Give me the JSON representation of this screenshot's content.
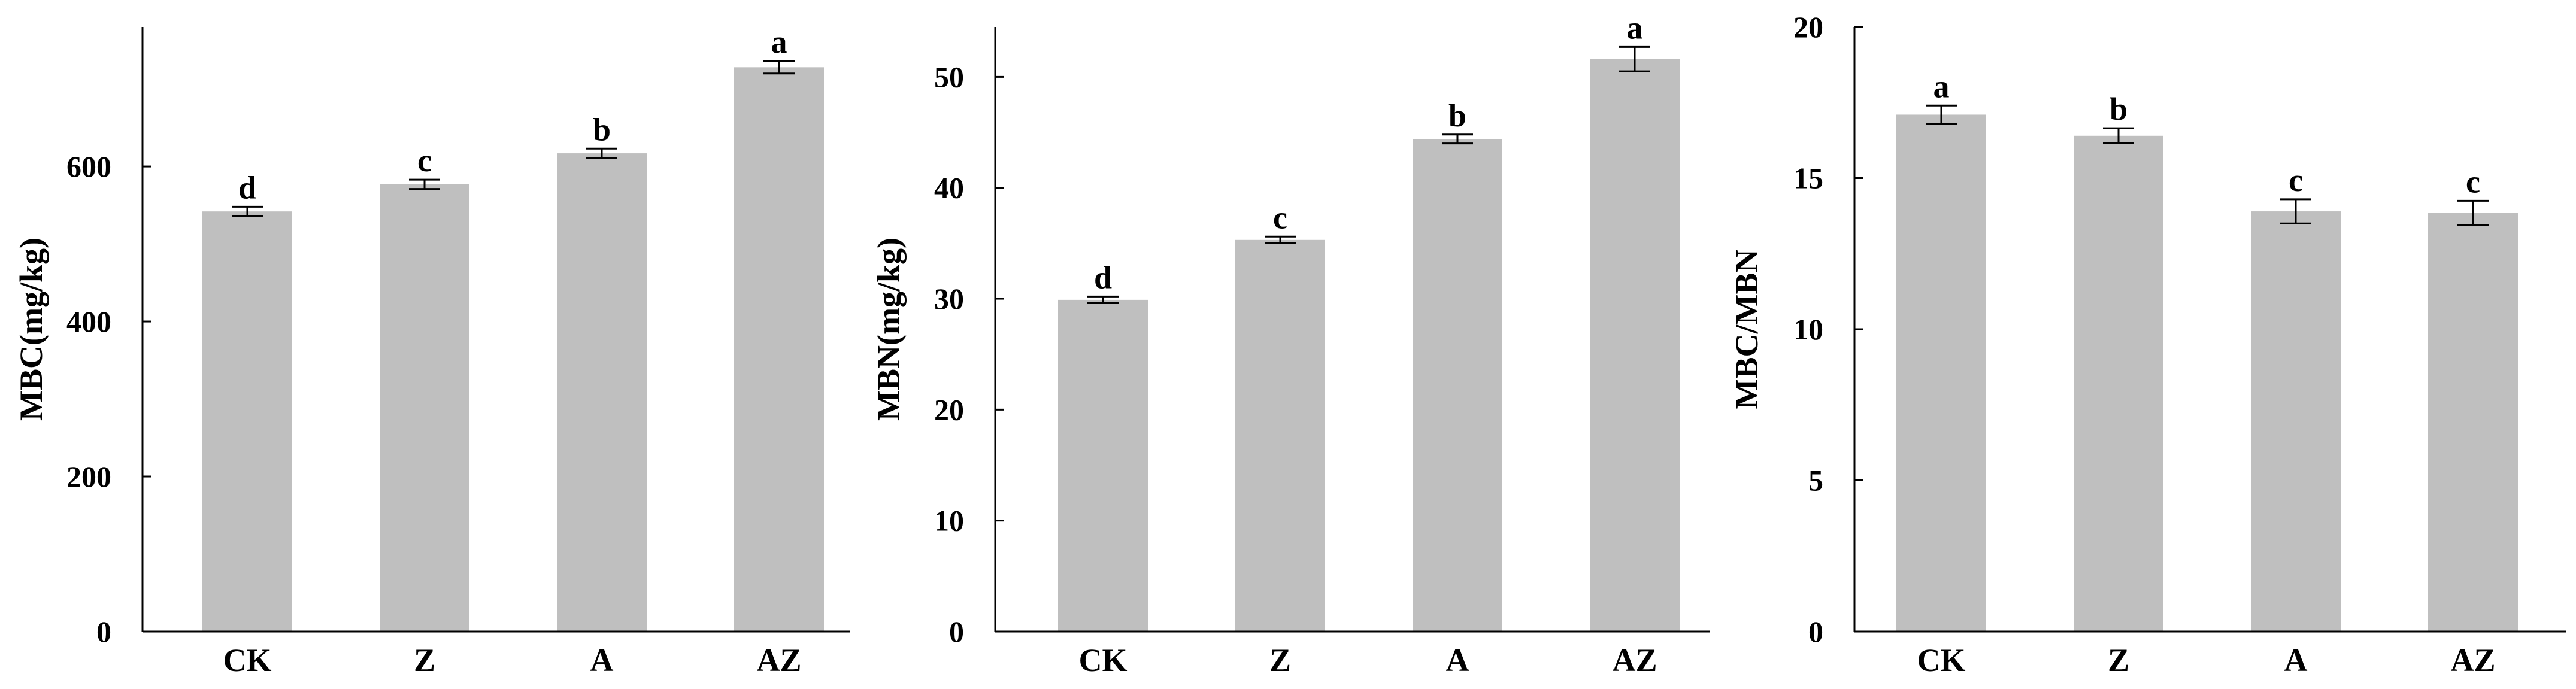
{
  "colors": {
    "bar": "#bfbfbf",
    "axis": "#000000",
    "error_bar": "#000000"
  },
  "chart_data": [
    {
      "type": "bar",
      "categories": [
        "CK",
        "Z",
        "A",
        "AZ"
      ],
      "values": [
        542,
        577,
        617,
        728
      ],
      "errors": [
        6,
        6,
        6,
        8
      ],
      "significance": [
        "d",
        "c",
        "b",
        "a"
      ],
      "ylabel": "MBC(mg/kg)",
      "ylim": [
        0,
        780
      ],
      "yticks": [
        "0",
        "200",
        "400",
        "600"
      ],
      "ytick_values": [
        0,
        200,
        400,
        600
      ],
      "grid": false
    },
    {
      "type": "bar",
      "categories": [
        "CK",
        "Z",
        "A",
        "AZ"
      ],
      "values": [
        29.9,
        35.3,
        44.4,
        51.6
      ],
      "errors": [
        0.3,
        0.3,
        0.4,
        1.1
      ],
      "significance": [
        "d",
        "c",
        "b",
        "a"
      ],
      "ylabel": "MBN(mg/kg)",
      "ylim": [
        0,
        54.5
      ],
      "yticks": [
        "0",
        "10",
        "20",
        "30",
        "40",
        "50"
      ],
      "ytick_values": [
        0,
        10,
        20,
        30,
        40,
        50
      ],
      "grid": false
    },
    {
      "type": "bar",
      "categories": [
        "CK",
        "Z",
        "A",
        "AZ"
      ],
      "values": [
        17.1,
        16.4,
        13.9,
        13.85
      ],
      "errors": [
        0.3,
        0.25,
        0.4,
        0.4
      ],
      "significance": [
        "a",
        "b",
        "c",
        "c"
      ],
      "ylabel": "MBC/MBN",
      "ylim": [
        0,
        20
      ],
      "yticks": [
        "0",
        "5",
        "10",
        "15",
        "20"
      ],
      "ytick_values": [
        0,
        5,
        10,
        15,
        20
      ],
      "grid": false
    }
  ]
}
